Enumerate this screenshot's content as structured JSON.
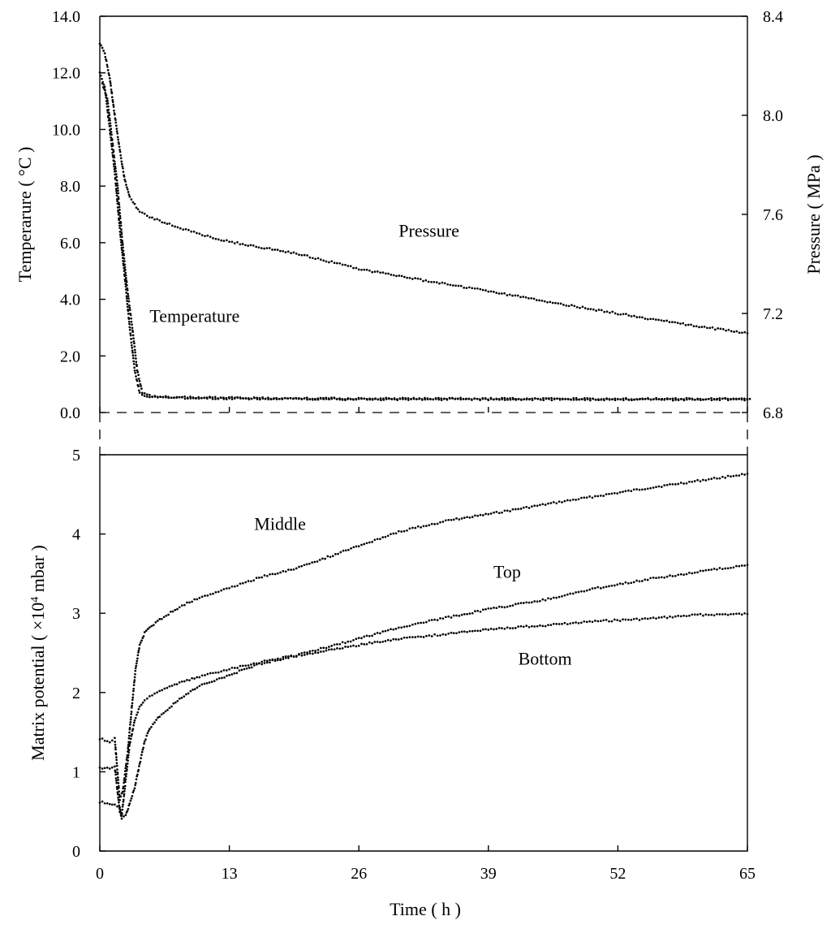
{
  "chart_data": [
    {
      "panel": "top",
      "type": "line",
      "x_range": [
        0,
        65
      ],
      "y_left": {
        "label": "Temperarure ( °C )",
        "range": [
          0,
          14
        ],
        "ticks": [
          "0.0",
          "2.0",
          "4.0",
          "6.0",
          "8.0",
          "10.0",
          "12.0",
          "14.0"
        ]
      },
      "y_right": {
        "label": "Pressure ( MPa )",
        "range": [
          6.8,
          8.4
        ],
        "ticks": [
          "6.8",
          "7.2",
          "7.6",
          "8.0",
          "8.4"
        ]
      },
      "series": [
        {
          "name": "Temperature",
          "axis": "left",
          "label": "Temperature",
          "label_at": [
            5,
            3.2
          ],
          "x": [
            0,
            0.5,
            1,
            1.5,
            2,
            2.5,
            3,
            3.5,
            4,
            4.5,
            5,
            8,
            13,
            20,
            26,
            39,
            52,
            65
          ],
          "y": [
            12.0,
            11.5,
            10.0,
            8.5,
            6.5,
            4.8,
            3.0,
            1.5,
            0.7,
            0.6,
            0.55,
            0.52,
            0.5,
            0.48,
            0.47,
            0.47,
            0.46,
            0.46
          ]
        },
        {
          "name": "Pressure",
          "axis": "right",
          "label": "Pressure",
          "label_at": [
            30,
            7.51
          ],
          "x": [
            0,
            0.5,
            1,
            1.5,
            2,
            2.5,
            3,
            4,
            5,
            7,
            10,
            13,
            20,
            26,
            33,
            39,
            46,
            52,
            58,
            65
          ],
          "y": [
            8.29,
            8.25,
            8.15,
            8.0,
            7.86,
            7.74,
            7.67,
            7.61,
            7.59,
            7.56,
            7.52,
            7.49,
            7.44,
            7.38,
            7.33,
            7.29,
            7.24,
            7.2,
            7.16,
            7.12
          ]
        }
      ]
    },
    {
      "panel": "bottom",
      "type": "line",
      "x_range": [
        0,
        65
      ],
      "xlabel": "Time ( h )",
      "x_ticks": [
        "0",
        "13",
        "26",
        "39",
        "52",
        "65"
      ],
      "y": {
        "label": "Matrix potential ( ×10⁴ mbar )",
        "range": [
          0,
          5
        ],
        "ticks": [
          "0",
          "1",
          "2",
          "3",
          "4",
          "5"
        ]
      },
      "series": [
        {
          "name": "Middle",
          "label": "Middle",
          "label_at": [
            15.5,
            4.05
          ],
          "x": [
            0,
            1,
            1.5,
            2,
            2.3,
            2.8,
            3.2,
            3.6,
            4,
            4.5,
            5,
            6,
            8,
            10,
            13,
            16,
            20,
            26,
            30,
            35,
            39,
            45,
            50,
            55,
            60,
            65
          ],
          "y": [
            1.42,
            1.38,
            1.42,
            0.65,
            0.75,
            1.25,
            1.8,
            2.3,
            2.6,
            2.75,
            2.82,
            2.92,
            3.08,
            3.2,
            3.32,
            3.45,
            3.58,
            3.85,
            4.03,
            4.17,
            4.25,
            4.38,
            4.48,
            4.58,
            4.67,
            4.76
          ]
        },
        {
          "name": "Top",
          "label": "Top",
          "label_at": [
            39.5,
            3.45
          ],
          "x": [
            0,
            1,
            1.5,
            2,
            2.2,
            2.6,
            3,
            3.5,
            4,
            4.5,
            5,
            6,
            8,
            10,
            13,
            16,
            20,
            26,
            30,
            35,
            39,
            45,
            50,
            55,
            60,
            65
          ],
          "y": [
            1.05,
            1.04,
            1.06,
            0.5,
            0.45,
            0.9,
            1.35,
            1.65,
            1.82,
            1.9,
            1.96,
            2.02,
            2.12,
            2.2,
            2.3,
            2.38,
            2.48,
            2.68,
            2.82,
            2.95,
            3.05,
            3.18,
            3.32,
            3.43,
            3.52,
            3.61
          ]
        },
        {
          "name": "Bottom",
          "label": "Bottom",
          "label_at": [
            42,
            2.35
          ],
          "x": [
            0,
            1,
            2,
            2.2,
            2.6,
            3,
            3.5,
            4,
            4.5,
            5,
            6,
            8,
            10,
            13,
            16,
            20,
            26,
            30,
            35,
            39,
            45,
            50,
            55,
            60,
            65
          ],
          "y": [
            0.62,
            0.6,
            0.56,
            0.4,
            0.45,
            0.6,
            0.8,
            1.1,
            1.38,
            1.55,
            1.7,
            1.92,
            2.08,
            2.22,
            2.36,
            2.47,
            2.6,
            2.68,
            2.74,
            2.8,
            2.85,
            2.9,
            2.93,
            2.98,
            2.99
          ]
        }
      ]
    }
  ]
}
